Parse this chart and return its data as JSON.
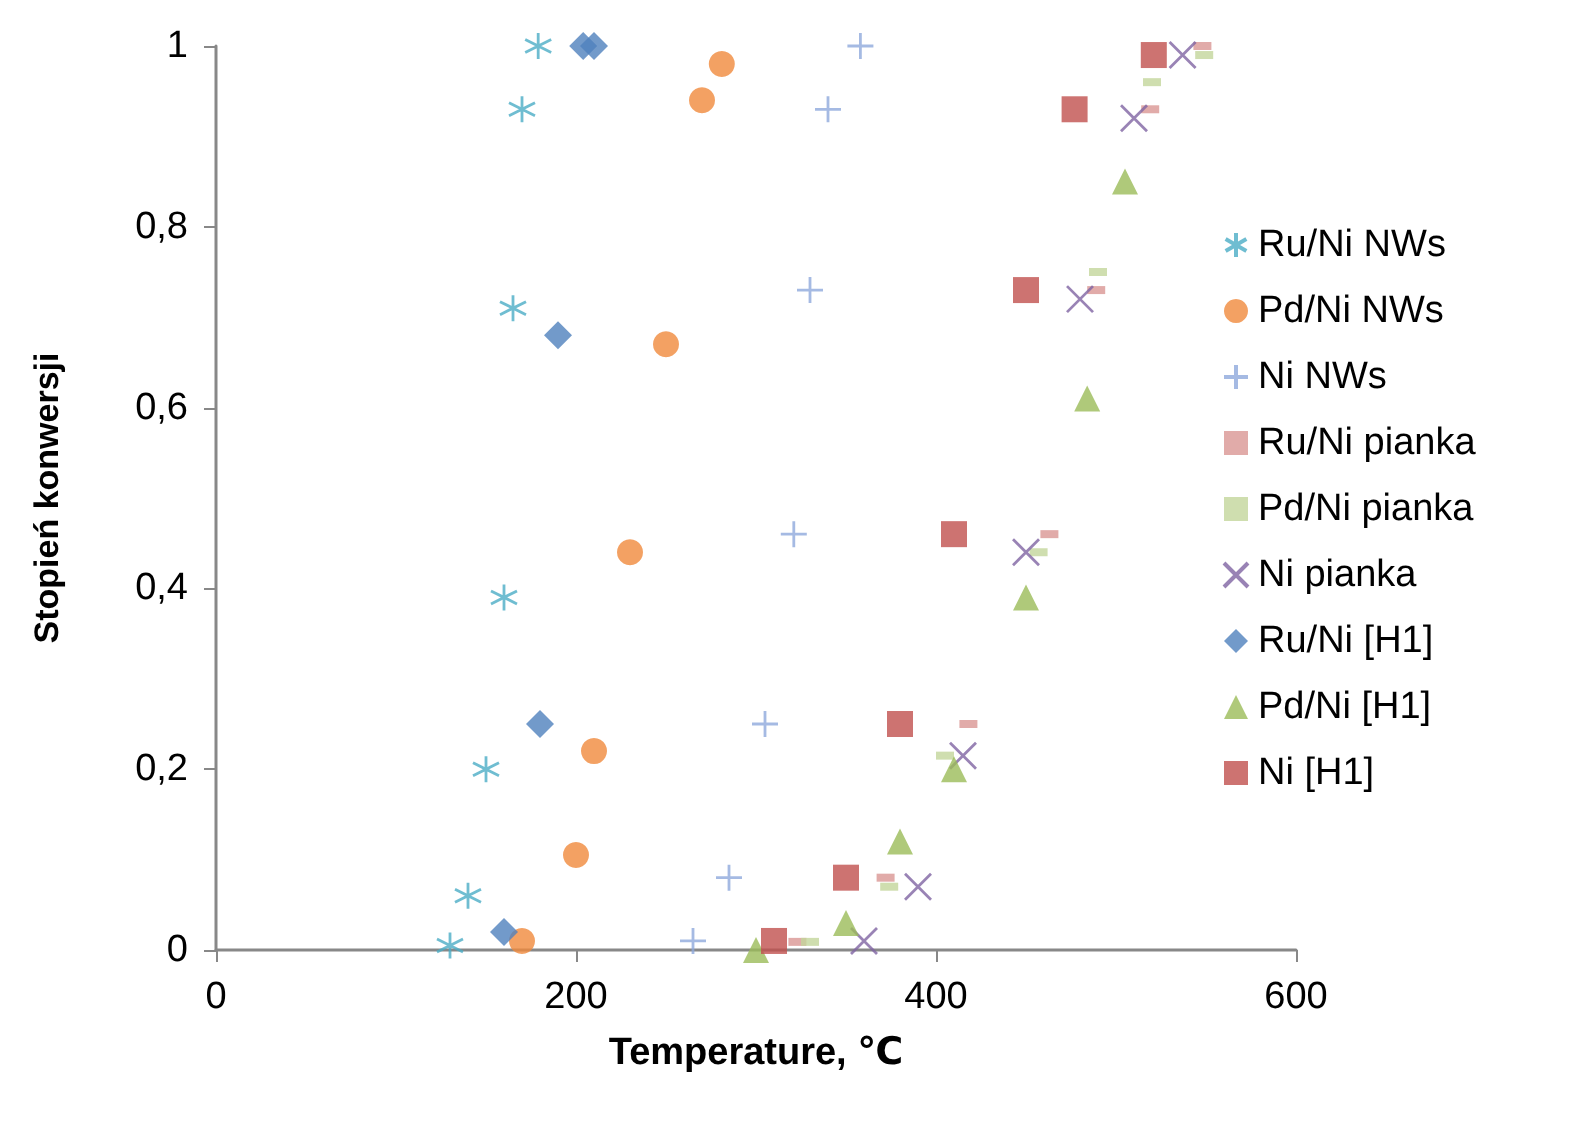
{
  "chart_data": {
    "type": "scatter",
    "xlabel": "Temperature, ℃",
    "ylabel": "Stopień konwersji",
    "xlim": [
      0,
      600
    ],
    "xticks": [
      0,
      200,
      400,
      600
    ],
    "ylim": [
      0,
      1
    ],
    "yticks": [
      0,
      {
        "value": 0.2,
        "label": "0,2"
      },
      {
        "value": 0.4,
        "label": "0,4"
      },
      {
        "value": 0.6,
        "label": "0,6"
      },
      {
        "value": 0.8,
        "label": "0,8"
      },
      1
    ],
    "grid": false,
    "legend": "right",
    "series": [
      {
        "name": "Ru/Ni NWs",
        "color": "#4bacc6",
        "marker": "cross",
        "x": [
          130,
          140,
          150,
          160,
          165,
          170,
          179
        ],
        "values": [
          0.005,
          0.06,
          0.2,
          0.39,
          0.71,
          0.93,
          1.0
        ]
      },
      {
        "name": "Pd/Ni NWs",
        "color": "#f08a3c",
        "marker": "circle",
        "x": [
          170,
          200,
          210,
          230,
          250,
          270,
          281
        ],
        "values": [
          0.01,
          0.105,
          0.22,
          0.44,
          0.67,
          0.94,
          0.98
        ]
      },
      {
        "name": "Ni NWs",
        "color": "#8fa9dc",
        "marker": "cross",
        "x": [
          265,
          285,
          305,
          321,
          330,
          340,
          358
        ],
        "values": [
          0.01,
          0.08,
          0.25,
          0.46,
          0.73,
          0.93,
          1.0
        ]
      },
      {
        "name": "Ru/Ni pianka",
        "color": "#d99694",
        "marker": "square",
        "x": [
          323,
          372,
          418,
          463,
          489,
          519,
          548
        ],
        "values": [
          0.009,
          0.08,
          0.25,
          0.46,
          0.73,
          0.93,
          1.0
        ]
      },
      {
        "name": "Pd/Ni pianka",
        "color": "#c3d69b",
        "marker": "square",
        "x": [
          330,
          374,
          405,
          457,
          490,
          520,
          549
        ],
        "values": [
          0.009,
          0.07,
          0.215,
          0.44,
          0.75,
          0.96,
          0.99
        ]
      },
      {
        "name": "Ni pianka",
        "color": "#8064a2",
        "marker": "x",
        "x": [
          360,
          390,
          415,
          450,
          480,
          510,
          537
        ],
        "values": [
          0.01,
          0.07,
          0.215,
          0.44,
          0.72,
          0.92,
          0.99
        ]
      },
      {
        "name": "Ru/Ni [H1]",
        "color": "#4f81bd",
        "marker": "diamond",
        "x": [
          160,
          180,
          190,
          204,
          210
        ],
        "values": [
          0.02,
          0.25,
          0.68,
          1.0,
          1.0
        ]
      },
      {
        "name": "Pd/Ni [H1]",
        "color": "#9bbb59",
        "marker": "triangle",
        "x": [
          300,
          350,
          380,
          410,
          450,
          484,
          505
        ],
        "values": [
          0.0,
          0.03,
          0.12,
          0.2,
          0.39,
          0.61,
          0.85
        ]
      },
      {
        "name": "Ni [H1]",
        "color": "#c0504d",
        "marker": "square",
        "x": [
          310,
          350,
          380,
          410,
          450,
          477,
          521
        ],
        "values": [
          0.01,
          0.08,
          0.25,
          0.46,
          0.73,
          0.93,
          0.99
        ]
      }
    ]
  }
}
